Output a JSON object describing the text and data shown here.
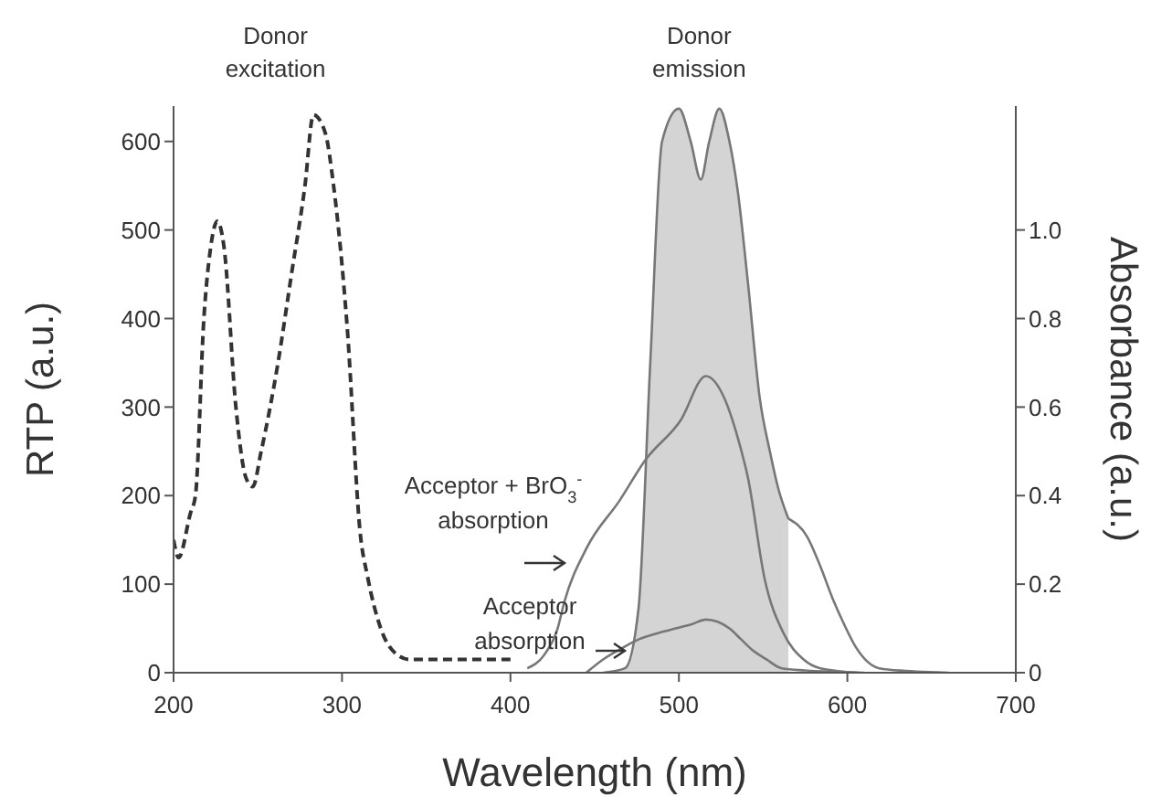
{
  "chart_data": {
    "type": "line",
    "xlabel": "Wavelength (nm)",
    "ylabel": "RTP (a.u.)",
    "y2label": "Absorbance (a.u.)",
    "xlim": [
      200,
      700
    ],
    "xticks": [
      200,
      300,
      400,
      500,
      600,
      700
    ],
    "ylim": [
      0,
      640
    ],
    "yticks": [
      0,
      100,
      200,
      300,
      400,
      500,
      600
    ],
    "y2lim": [
      0,
      1.28
    ],
    "y2ticks": [
      0,
      0.2,
      0.4,
      0.6,
      0.8,
      {
        "value": 1,
        "label": "1.0"
      }
    ],
    "grid": false,
    "marker": "none",
    "series": [
      {
        "name": "Donor excitation",
        "line_style": "dashed",
        "color": "#333333",
        "x": [
          200,
          203,
          210,
          213,
          218,
          222,
          226,
          230,
          237,
          243,
          247,
          252,
          262,
          270,
          278,
          283,
          290,
          295,
          303,
          311,
          315,
          323,
          333,
          340,
          400
        ],
        "values": [
          150,
          130,
          180,
          200,
          400,
          480,
          510,
          480,
          300,
          220,
          210,
          250,
          350,
          450,
          550,
          630,
          610,
          550,
          392,
          154,
          110,
          50,
          20,
          15,
          15
        ]
      },
      {
        "name": "Donor emission",
        "type": "area",
        "color": "#777777",
        "x": [
          455,
          468,
          476,
          483,
          490,
          500,
          507,
          513,
          518,
          524,
          530,
          535,
          541,
          548,
          554,
          559,
          565
        ],
        "values": [
          0,
          5,
          72,
          350,
          600,
          637,
          600,
          557,
          600,
          637,
          600,
          543,
          440,
          310,
          250,
          208,
          174
        ]
      },
      {
        "color": "#777777",
        "x": [
          565,
          576,
          584,
          591,
          598,
          605,
          619,
          635,
          660
        ],
        "values": [
          174,
          154,
          120,
          85,
          55,
          29,
          5,
          2,
          0
        ]
      },
      {
        "name": "Acceptor + BrO$_{3}$$^{-}$ absorption",
        "axis": "y2",
        "color": "#777777",
        "x": [
          410,
          420,
          428,
          432,
          445,
          465,
          480,
          501,
          516,
          527,
          535,
          541,
          551,
          562,
          574,
          584,
          607
        ],
        "values": [
          0.01,
          0.04,
          0.1,
          0.16,
          0.28,
          0.39,
          0.48,
          0.57,
          0.67,
          0.62,
          0.53,
          0.44,
          0.21,
          0.09,
          0.03,
          0.01,
          0
        ]
      },
      {
        "name": "Acceptor absorption",
        "axis": "y2",
        "color": "#777777",
        "x": [
          445,
          455,
          466,
          476,
          488,
          498,
          508,
          516,
          523,
          530,
          537,
          544,
          552,
          561,
          575,
          610
        ],
        "values": [
          0,
          0.03,
          0.055,
          0.075,
          0.09,
          0.1,
          0.11,
          0.12,
          0.115,
          0.1,
          0.075,
          0.05,
          0.03,
          0.01,
          0.005,
          0
        ]
      }
    ]
  }
}
